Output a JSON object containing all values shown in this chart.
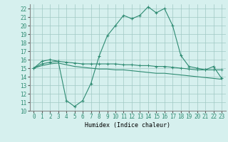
{
  "xlabel": "Humidex (Indice chaleur)",
  "ylabel": "",
  "x": [
    0,
    1,
    2,
    3,
    4,
    5,
    6,
    7,
    8,
    9,
    10,
    11,
    12,
    13,
    14,
    15,
    16,
    17,
    18,
    19,
    20,
    21,
    22,
    23
  ],
  "line1": [
    15.0,
    15.8,
    16.0,
    15.8,
    11.2,
    10.5,
    11.2,
    13.2,
    16.4,
    18.8,
    20.0,
    21.2,
    20.8,
    21.2,
    22.2,
    21.5,
    22.0,
    20.0,
    16.5,
    15.2,
    15.0,
    14.8,
    15.2,
    13.8
  ],
  "line2": [
    15.0,
    15.5,
    15.7,
    15.8,
    15.7,
    15.6,
    15.5,
    15.5,
    15.5,
    15.5,
    15.5,
    15.4,
    15.4,
    15.3,
    15.3,
    15.2,
    15.2,
    15.1,
    15.0,
    14.9,
    14.8,
    14.8,
    14.8,
    14.8
  ],
  "line3": [
    15.0,
    15.3,
    15.5,
    15.6,
    15.4,
    15.2,
    15.1,
    15.0,
    14.9,
    14.9,
    14.8,
    14.8,
    14.7,
    14.6,
    14.5,
    14.4,
    14.4,
    14.3,
    14.2,
    14.1,
    14.0,
    13.9,
    13.8,
    13.7
  ],
  "color": "#2e8b72",
  "bg_color": "#d6f0ee",
  "grid_color": "#a0c8c4",
  "xlim": [
    -0.5,
    23.5
  ],
  "ylim": [
    10,
    22.5
  ],
  "yticks": [
    10,
    11,
    12,
    13,
    14,
    15,
    16,
    17,
    18,
    19,
    20,
    21,
    22
  ],
  "xticks": [
    0,
    1,
    2,
    3,
    4,
    5,
    6,
    7,
    8,
    9,
    10,
    11,
    12,
    13,
    14,
    15,
    16,
    17,
    18,
    19,
    20,
    21,
    22,
    23
  ]
}
